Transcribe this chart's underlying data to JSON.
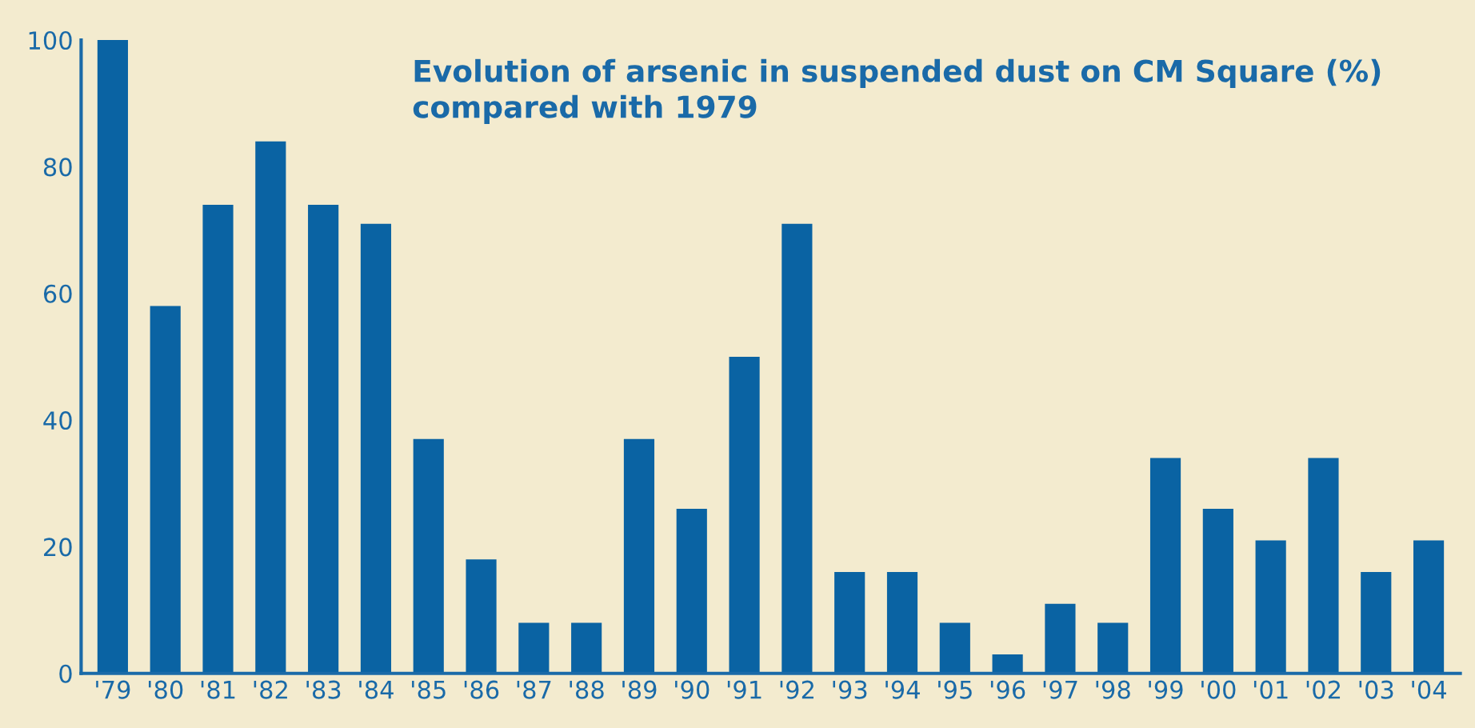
{
  "chart_data": {
    "type": "bar",
    "title": "Evolution of arsenic in suspended dust on CM Square (%)\ncompared with 1979",
    "categories": [
      "'79",
      "'80",
      "'81",
      "'82",
      "'83",
      "'84",
      "'85",
      "'86",
      "'87",
      "'88",
      "'89",
      "'90",
      "'91",
      "'92",
      "'93",
      "'94",
      "'95",
      "'96",
      "'97",
      "'98",
      "'99",
      "'00",
      "'01",
      "'02",
      "'03",
      "'04"
    ],
    "values": [
      100,
      58,
      74,
      84,
      74,
      71,
      37,
      18,
      8,
      8,
      37,
      26,
      50,
      71,
      16,
      16,
      8,
      3,
      11,
      8,
      34,
      26,
      21,
      34,
      16,
      21
    ],
    "color": "#0a63a3",
    "ylim": [
      0,
      100
    ],
    "yticks": [
      0,
      20,
      40,
      60,
      80,
      100
    ],
    "grid": false,
    "legend": false
  }
}
